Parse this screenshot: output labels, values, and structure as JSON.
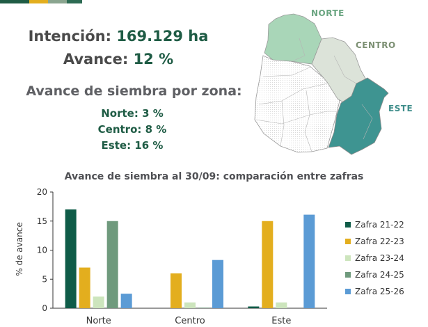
{
  "header": {
    "intencion_label": "Intención:",
    "intencion_value": "169.129 ha",
    "avance_label": "Avance:",
    "avance_value": "12 %",
    "subtitle": "Avance de siembra por zona:",
    "zones": [
      {
        "label": "Norte:",
        "value": "3 %"
      },
      {
        "label": "Centro:",
        "value": "8 %"
      },
      {
        "label": "Este:",
        "value": "16 %"
      }
    ]
  },
  "map": {
    "labels": {
      "norte": "NORTE",
      "centro": "CENTRO",
      "este": "ESTE"
    },
    "colors": {
      "norte": "#a9d6b8",
      "centro": "#dce3d9",
      "este": "#3e9491",
      "other": "#ffffff"
    }
  },
  "topbar_colors": [
    "#1f5c45",
    "#e3ae1e",
    "#8aa58f",
    "#2d6b53"
  ],
  "chart_data": {
    "type": "bar",
    "title": "Avance de siembra al 30/09: comparación entre zafras",
    "ylabel": "% de avance",
    "xlabel": "",
    "ylim": [
      0,
      20
    ],
    "yticks": [
      0,
      5,
      10,
      15,
      20
    ],
    "grid": false,
    "legend": "right",
    "categories": [
      "Norte",
      "Centro",
      "Este"
    ],
    "series": [
      {
        "name": "Zafra 21-22",
        "color": "#0f5c48",
        "values": [
          17,
          0,
          0.3
        ]
      },
      {
        "name": "Zafra 22-23",
        "color": "#e3ae1e",
        "values": [
          7,
          6,
          15
        ]
      },
      {
        "name": "Zafra 23-24",
        "color": "#cde5bd",
        "values": [
          2,
          1,
          1
        ]
      },
      {
        "name": "Zafra 24-25",
        "color": "#6f9a7d",
        "values": [
          15,
          0.1,
          0
        ]
      },
      {
        "name": "Zafra 25-26",
        "color": "#5b9bd5",
        "values": [
          2.5,
          8.3,
          16.1
        ]
      }
    ]
  }
}
